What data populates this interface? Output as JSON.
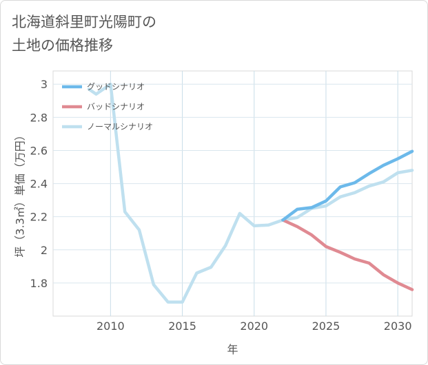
{
  "title_line1": "北海道斜里町光陽町の",
  "title_line2": "土地の価格推移",
  "chart_data": {
    "type": "line",
    "xlabel": "年",
    "ylabel": "坪（3.3㎡）単価（万円）",
    "xlim": [
      2006,
      2031
    ],
    "ylim": [
      1.6,
      3.08
    ],
    "x_ticks": [
      2010,
      2015,
      2020,
      2025,
      2030
    ],
    "y_ticks": [
      1.8,
      2,
      2.2,
      2.4,
      2.6,
      2.8,
      3
    ],
    "x_tick_labels": [
      "2010",
      "2015",
      "2020",
      "2025",
      "2030"
    ],
    "y_tick_labels": [
      "1.8",
      "2",
      "2.2",
      "2.4",
      "2.6",
      "2.8",
      "3"
    ],
    "grid": true,
    "legend_position": "top-left",
    "series": [
      {
        "name": "グッドシナリオ",
        "color": "#6cb9ea",
        "x": [
          2022,
          2023,
          2024,
          2025,
          2026,
          2027,
          2028,
          2029,
          2030,
          2031
        ],
        "y": [
          2.18,
          2.245,
          2.255,
          2.295,
          2.38,
          2.405,
          2.46,
          2.51,
          2.55,
          2.595
        ]
      },
      {
        "name": "バッドシナリオ",
        "color": "#e08a92",
        "x": [
          2022,
          2023,
          2024,
          2025,
          2026,
          2027,
          2028,
          2029,
          2030,
          2031
        ],
        "y": [
          2.18,
          2.14,
          2.09,
          2.02,
          1.985,
          1.945,
          1.92,
          1.85,
          1.8,
          1.76
        ]
      },
      {
        "name": "ノーマルシナリオ",
        "color": "#bfe0ef",
        "x": [
          2008.5,
          2009,
          2010,
          2011,
          2012,
          2013,
          2014,
          2015,
          2016,
          2017,
          2018,
          2019,
          2020,
          2021,
          2022,
          2023,
          2024,
          2025,
          2026,
          2027,
          2028,
          2029,
          2030,
          2031
        ],
        "y": [
          2.97,
          2.94,
          3.0,
          2.23,
          2.12,
          1.79,
          1.685,
          1.685,
          1.86,
          1.895,
          2.025,
          2.22,
          2.145,
          2.15,
          2.18,
          2.195,
          2.25,
          2.265,
          2.32,
          2.345,
          2.385,
          2.41,
          2.465,
          2.48
        ]
      }
    ]
  }
}
